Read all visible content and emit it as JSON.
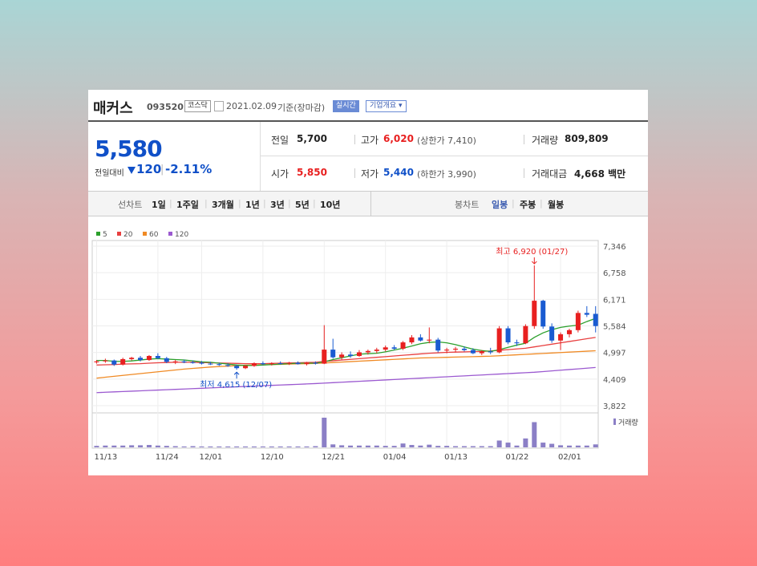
{
  "stock": {
    "name": "매커스",
    "code": "093520",
    "market": "코스닥",
    "date": "2021.02.09",
    "date_suffix": "기준(장마감)",
    "realtime_label": "실시간",
    "company_info_label": "기업개요 ▾",
    "price": "5,580",
    "change_label": "전일대비",
    "change_value": "120",
    "change_pct": "-2.11%",
    "change_icon": "down-triangle-icon"
  },
  "stats": {
    "prev_close_label": "전일",
    "prev_close": "5,700",
    "high_label": "고가",
    "high": "6,020",
    "upper_limit": "(상한가 7,410)",
    "volume_label": "거래량",
    "volume": "809,809",
    "open_label": "시가",
    "open": "5,850",
    "low_label": "저가",
    "low": "5,440",
    "lower_limit": "(하한가 3,990)",
    "amount_label": "거래대금",
    "amount": "4,668 백만"
  },
  "tabs": {
    "line_label": "선차트",
    "line_periods": [
      "1일",
      "1주일",
      "3개월",
      "1년",
      "3년",
      "5년",
      "10년"
    ],
    "candle_label": "봉차트",
    "candle_periods": [
      "일봉",
      "주봉",
      "월봉"
    ],
    "candle_selected": "일봉"
  },
  "colors": {
    "up": "#e82020",
    "down": "#1a5bd1",
    "ma5": "#2ca02c",
    "ma20": "#e84040",
    "ma60": "#f08a24",
    "ma120": "#9b59d0",
    "volume": "#8b7fc6"
  },
  "chart_data": {
    "type": "candlestick",
    "legend": [
      "5",
      "20",
      "60",
      "120"
    ],
    "y_ticks": [
      "7,346",
      "6,758",
      "6,171",
      "5,584",
      "4,997",
      "4,409",
      "3,822"
    ],
    "ylim": [
      3822,
      7346
    ],
    "x_tick_labels": [
      {
        "i": 0,
        "label": "11/13"
      },
      {
        "i": 7,
        "label": "11/24"
      },
      {
        "i": 12,
        "label": "12/01"
      },
      {
        "i": 19,
        "label": "12/10"
      },
      {
        "i": 26,
        "label": "12/21"
      },
      {
        "i": 33,
        "label": "01/04"
      },
      {
        "i": 40,
        "label": "01/13"
      },
      {
        "i": 47,
        "label": "01/22"
      },
      {
        "i": 53,
        "label": "02/01"
      }
    ],
    "annotations": [
      {
        "text": "최고 6,920 (01/27)",
        "i": 50,
        "value": 6920,
        "kind": "high"
      },
      {
        "text": "최저 4,615 (12/07)",
        "i": 16,
        "value": 4615,
        "kind": "low"
      }
    ],
    "volume_label": "거래량",
    "candles": [
      [
        4780,
        4830,
        4750,
        4800
      ],
      [
        4800,
        4860,
        4770,
        4820
      ],
      [
        4820,
        4840,
        4700,
        4730
      ],
      [
        4730,
        4880,
        4710,
        4850
      ],
      [
        4850,
        4900,
        4820,
        4880
      ],
      [
        4880,
        4920,
        4800,
        4830
      ],
      [
        4830,
        4940,
        4810,
        4920
      ],
      [
        4920,
        4980,
        4850,
        4870
      ],
      [
        4870,
        4900,
        4760,
        4790
      ],
      [
        4790,
        4830,
        4740,
        4800
      ],
      [
        4800,
        4840,
        4760,
        4780
      ],
      [
        4780,
        4820,
        4750,
        4770
      ],
      [
        4770,
        4810,
        4730,
        4750
      ],
      [
        4750,
        4790,
        4720,
        4740
      ],
      [
        4740,
        4770,
        4700,
        4720
      ],
      [
        4720,
        4760,
        4680,
        4700
      ],
      [
        4700,
        4730,
        4615,
        4650
      ],
      [
        4650,
        4720,
        4630,
        4700
      ],
      [
        4700,
        4780,
        4680,
        4760
      ],
      [
        4760,
        4800,
        4720,
        4740
      ],
      [
        4740,
        4780,
        4710,
        4760
      ],
      [
        4760,
        4800,
        4730,
        4750
      ],
      [
        4750,
        4790,
        4720,
        4770
      ],
      [
        4770,
        4800,
        4730,
        4740
      ],
      [
        4740,
        4790,
        4710,
        4770
      ],
      [
        4770,
        4800,
        4730,
        4750
      ],
      [
        4750,
        5600,
        4740,
        5060
      ],
      [
        5060,
        5300,
        4860,
        4890
      ],
      [
        4890,
        5000,
        4840,
        4950
      ],
      [
        4950,
        5020,
        4880,
        4920
      ],
      [
        4920,
        5050,
        4900,
        5000
      ],
      [
        5000,
        5060,
        4950,
        5030
      ],
      [
        5030,
        5100,
        4980,
        5060
      ],
      [
        5060,
        5150,
        5020,
        5110
      ],
      [
        5110,
        5160,
        5050,
        5080
      ],
      [
        5080,
        5250,
        5050,
        5220
      ],
      [
        5220,
        5380,
        5180,
        5330
      ],
      [
        5330,
        5400,
        5240,
        5260
      ],
      [
        5260,
        5550,
        5200,
        5280
      ],
      [
        5280,
        5320,
        5000,
        5040
      ],
      [
        5040,
        5100,
        4980,
        5060
      ],
      [
        5060,
        5120,
        5000,
        5080
      ],
      [
        5080,
        5130,
        5020,
        5050
      ],
      [
        5050,
        5090,
        4960,
        4980
      ],
      [
        4980,
        5050,
        4940,
        5020
      ],
      [
        5020,
        5100,
        4960,
        5000
      ],
      [
        5000,
        5580,
        4980,
        5530
      ],
      [
        5530,
        5580,
        5180,
        5220
      ],
      [
        5220,
        5280,
        5140,
        5200
      ],
      [
        5200,
        5620,
        5180,
        5580
      ],
      [
        5580,
        6920,
        5520,
        6140
      ],
      [
        6140,
        6160,
        5520,
        5570
      ],
      [
        5570,
        5640,
        5210,
        5260
      ],
      [
        5260,
        5440,
        5050,
        5400
      ],
      [
        5400,
        5520,
        5330,
        5490
      ],
      [
        5490,
        5920,
        5440,
        5870
      ],
      [
        5870,
        6020,
        5780,
        5830
      ],
      [
        5850,
        6020,
        5440,
        5580
      ]
    ],
    "ma5": [
      4820,
      4820,
      4800,
      4800,
      4810,
      4830,
      4850,
      4860,
      4850,
      4840,
      4830,
      4810,
      4790,
      4780,
      4760,
      4740,
      4720,
      4710,
      4710,
      4720,
      4730,
      4740,
      4750,
      4760,
      4760,
      4760,
      4790,
      4840,
      4880,
      4920,
      4960,
      4970,
      4980,
      5010,
      5050,
      5090,
      5140,
      5190,
      5220,
      5230,
      5210,
      5170,
      5120,
      5070,
      5040,
      5020,
      5060,
      5110,
      5160,
      5200,
      5330,
      5430,
      5500,
      5550,
      5580,
      5600,
      5680,
      5750
    ],
    "ma20": [
      4720,
      4725,
      4730,
      4740,
      4745,
      4750,
      4760,
      4770,
      4775,
      4780,
      4780,
      4780,
      4775,
      4770,
      4765,
      4760,
      4755,
      4750,
      4750,
      4750,
      4755,
      4760,
      4765,
      4770,
      4775,
      4780,
      4800,
      4815,
      4830,
      4845,
      4860,
      4875,
      4890,
      4905,
      4920,
      4935,
      4950,
      4965,
      4980,
      4990,
      5000,
      5005,
      5010,
      5015,
      5020,
      5030,
      5045,
      5060,
      5075,
      5090,
      5120,
      5150,
      5180,
      5210,
      5240,
      5270,
      5300,
      5330
    ],
    "ma60": [
      4430,
      4450,
      4470,
      4490,
      4510,
      4530,
      4550,
      4570,
      4590,
      4610,
      4630,
      4645,
      4660,
      4675,
      4685,
      4695,
      4705,
      4715,
      4720,
      4725,
      4730,
      4735,
      4740,
      4745,
      4750,
      4755,
      4765,
      4775,
      4785,
      4795,
      4805,
      4815,
      4825,
      4835,
      4845,
      4855,
      4865,
      4875,
      4880,
      4885,
      4890,
      4895,
      4900,
      4905,
      4910,
      4915,
      4925,
      4935,
      4945,
      4955,
      4965,
      4975,
      4985,
      4995,
      5005,
      5015,
      5025,
      5035
    ],
    "ma120": [
      4110,
      4118,
      4126,
      4134,
      4142,
      4150,
      4158,
      4166,
      4174,
      4182,
      4190,
      4198,
      4206,
      4214,
      4222,
      4230,
      4238,
      4246,
      4254,
      4262,
      4270,
      4278,
      4286,
      4294,
      4302,
      4310,
      4320,
      4330,
      4340,
      4350,
      4360,
      4370,
      4380,
      4390,
      4400,
      4410,
      4420,
      4430,
      4440,
      4450,
      4460,
      4470,
      4480,
      4490,
      4500,
      4510,
      4520,
      4530,
      4540,
      4550,
      4560,
      4575,
      4590,
      4605,
      4620,
      4635,
      4650,
      4665
    ],
    "volume": [
      0.05,
      0.06,
      0.06,
      0.06,
      0.07,
      0.07,
      0.08,
      0.06,
      0.05,
      0.04,
      0.03,
      0.04,
      0.03,
      0.03,
      0.03,
      0.03,
      0.03,
      0.03,
      0.03,
      0.03,
      0.03,
      0.03,
      0.03,
      0.03,
      0.03,
      0.04,
      1.0,
      0.1,
      0.07,
      0.06,
      0.06,
      0.06,
      0.06,
      0.05,
      0.05,
      0.13,
      0.08,
      0.06,
      0.09,
      0.05,
      0.05,
      0.04,
      0.04,
      0.04,
      0.04,
      0.04,
      0.23,
      0.16,
      0.06,
      0.3,
      0.85,
      0.16,
      0.12,
      0.07,
      0.06,
      0.06,
      0.06,
      0.1
    ]
  }
}
